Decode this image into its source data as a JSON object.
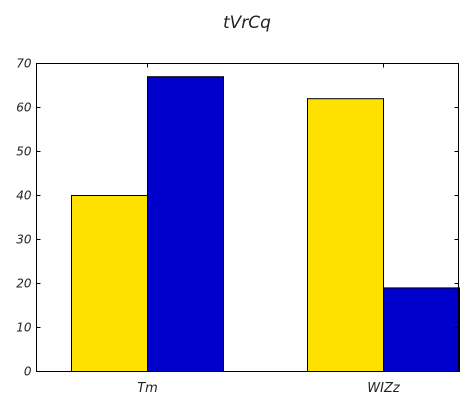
{
  "chart_data": {
    "type": "bar",
    "title": "tVrCq",
    "xlabel": "",
    "ylabel": "",
    "categories": [
      "Tm",
      "WIZz"
    ],
    "series": [
      {
        "values": [
          40,
          62
        ],
        "color": "#ffe100"
      },
      {
        "values": [
          67,
          19
        ],
        "color": "#0000cc"
      }
    ],
    "ylim": [
      0,
      70
    ],
    "yticks": [
      0,
      10,
      20,
      30,
      40,
      50,
      60,
      70
    ],
    "grid": false,
    "legend": "none"
  }
}
